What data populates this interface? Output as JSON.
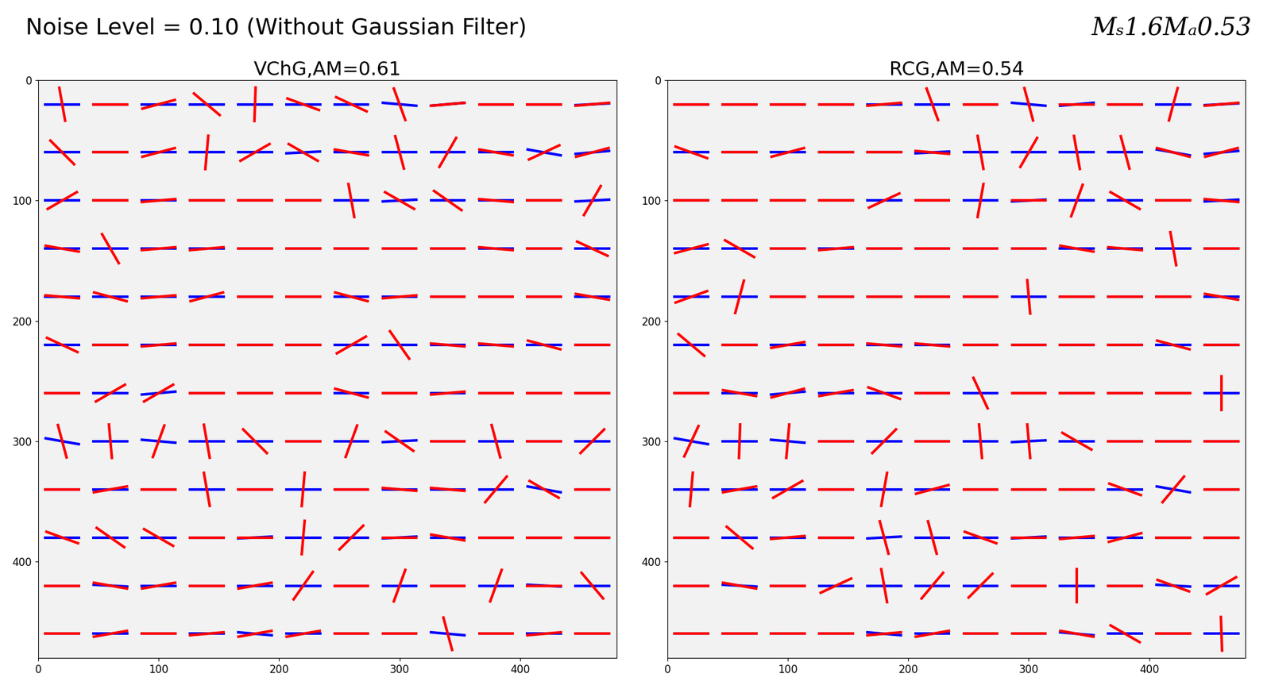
{
  "header": {
    "left": "Noise Level = 0.10 (Without Gaussian Filter)",
    "right": "Mₛ1.6Mₐ0.53"
  },
  "chart_data": [
    {
      "type": "vector",
      "title": "VChG,AM=0.61",
      "x": [
        20,
        60,
        100,
        140,
        180,
        220,
        260,
        300,
        340,
        380,
        420,
        460
      ],
      "y": [
        20,
        60,
        100,
        140,
        180,
        220,
        260,
        300,
        340,
        380,
        420,
        460
      ],
      "xlim": [
        0,
        480
      ],
      "ylim": [
        480,
        0
      ],
      "xticks": [
        0,
        100,
        200,
        300,
        400
      ],
      "yticks": [
        0,
        100,
        200,
        300,
        400
      ],
      "series": [
        {
          "color": "#0000ff",
          "angles": [
            [
              0,
              0,
              0,
              0,
              0,
              0,
              0,
              -5,
              5,
              0,
              0,
              3
            ],
            [
              0,
              0,
              0,
              0,
              0,
              3,
              0,
              0,
              0,
              0,
              -10,
              5
            ],
            [
              0,
              0,
              0,
              0,
              0,
              0,
              0,
              3,
              0,
              0,
              0,
              3
            ],
            [
              0,
              0,
              0,
              0,
              0,
              0,
              0,
              0,
              0,
              0,
              0,
              0
            ],
            [
              0,
              0,
              0,
              0,
              0,
              0,
              0,
              0,
              0,
              0,
              0,
              0
            ],
            [
              0,
              0,
              0,
              0,
              0,
              0,
              0,
              0,
              0,
              0,
              0,
              0
            ],
            [
              0,
              0,
              5,
              0,
              0,
              0,
              0,
              0,
              0,
              0,
              0,
              0
            ],
            [
              -10,
              0,
              -5,
              0,
              0,
              0,
              0,
              3,
              0,
              0,
              0,
              0
            ],
            [
              0,
              0,
              0,
              0,
              0,
              0,
              0,
              0,
              0,
              0,
              -10,
              0
            ],
            [
              0,
              0,
              0,
              0,
              3,
              0,
              0,
              3,
              0,
              0,
              0,
              0
            ],
            [
              0,
              -3,
              0,
              0,
              0,
              0,
              0,
              0,
              0,
              0,
              -3,
              0
            ],
            [
              0,
              0,
              0,
              0,
              -5,
              0,
              0,
              0,
              -5,
              0,
              0,
              0
            ]
          ]
        },
        {
          "color": "#ff0000",
          "angles": [
            [
              -80,
              0,
              15,
              -40,
              88,
              -20,
              -25,
              -70,
              5,
              0,
              0,
              5
            ],
            [
              -45,
              0,
              15,
              85,
              30,
              -30,
              -10,
              -75,
              60,
              -10,
              25,
              15
            ],
            [
              30,
              0,
              5,
              0,
              0,
              0,
              -80,
              -30,
              -35,
              -5,
              0,
              60
            ],
            [
              -10,
              -60,
              5,
              5,
              0,
              0,
              0,
              0,
              0,
              -5,
              0,
              -25
            ],
            [
              -5,
              -15,
              5,
              15,
              0,
              0,
              -15,
              5,
              0,
              0,
              0,
              -10
            ],
            [
              -25,
              0,
              5,
              0,
              0,
              0,
              30,
              -55,
              -5,
              -5,
              -15,
              0
            ],
            [
              0,
              30,
              30,
              0,
              0,
              0,
              -15,
              0,
              5,
              0,
              0,
              0
            ],
            [
              -75,
              -85,
              70,
              -80,
              -45,
              0,
              70,
              -35,
              0,
              -75,
              0,
              45
            ],
            [
              0,
              10,
              0,
              -80,
              0,
              85,
              0,
              -5,
              -5,
              50,
              -30,
              0
            ],
            [
              -20,
              -35,
              -30,
              0,
              0,
              85,
              45,
              0,
              -10,
              0,
              0,
              0
            ],
            [
              0,
              -10,
              10,
              0,
              10,
              55,
              0,
              70,
              0,
              70,
              0,
              -50
            ],
            [
              0,
              10,
              0,
              5,
              10,
              10,
              0,
              0,
              -75,
              0,
              5,
              0
            ]
          ]
        }
      ]
    },
    {
      "type": "vector",
      "title": "RCG,AM=0.54",
      "x": [
        20,
        60,
        100,
        140,
        180,
        220,
        260,
        300,
        340,
        380,
        420,
        460
      ],
      "y": [
        20,
        60,
        100,
        140,
        180,
        220,
        260,
        300,
        340,
        380,
        420,
        460
      ],
      "xlim": [
        0,
        480
      ],
      "ylim": [
        480,
        0
      ],
      "xticks": [
        0,
        100,
        200,
        300,
        400
      ],
      "yticks": [
        0,
        100,
        200,
        300,
        400
      ],
      "series": [
        {
          "color": "#0000ff",
          "angles": [
            [
              0,
              0,
              0,
              0,
              0,
              0,
              0,
              -5,
              5,
              0,
              0,
              3
            ],
            [
              0,
              0,
              0,
              0,
              0,
              3,
              0,
              0,
              0,
              0,
              -10,
              5
            ],
            [
              0,
              0,
              0,
              0,
              0,
              0,
              0,
              3,
              0,
              0,
              0,
              3
            ],
            [
              0,
              0,
              0,
              0,
              0,
              0,
              0,
              0,
              0,
              0,
              0,
              0
            ],
            [
              0,
              0,
              0,
              0,
              0,
              0,
              0,
              0,
              0,
              0,
              0,
              0
            ],
            [
              0,
              0,
              0,
              0,
              0,
              0,
              0,
              0,
              0,
              0,
              0,
              0
            ],
            [
              0,
              0,
              5,
              0,
              0,
              0,
              0,
              0,
              0,
              0,
              0,
              0
            ],
            [
              -10,
              0,
              -5,
              0,
              0,
              0,
              0,
              3,
              0,
              0,
              0,
              0
            ],
            [
              0,
              0,
              0,
              0,
              0,
              0,
              0,
              0,
              0,
              0,
              -10,
              0
            ],
            [
              0,
              0,
              0,
              0,
              3,
              0,
              0,
              3,
              0,
              0,
              0,
              0
            ],
            [
              0,
              -3,
              0,
              0,
              0,
              0,
              0,
              0,
              0,
              0,
              -3,
              0
            ],
            [
              0,
              0,
              0,
              0,
              -5,
              0,
              0,
              0,
              -5,
              0,
              0,
              0
            ]
          ]
        },
        {
          "color": "#ff0000",
          "angles": [
            [
              0,
              0,
              0,
              0,
              5,
              -70,
              0,
              -75,
              0,
              0,
              75,
              5
            ],
            [
              -20,
              0,
              15,
              0,
              0,
              -5,
              -80,
              60,
              -80,
              -75,
              -15,
              15
            ],
            [
              0,
              0,
              0,
              0,
              25,
              0,
              80,
              0,
              70,
              -30,
              0,
              -5
            ],
            [
              15,
              -30,
              0,
              5,
              0,
              0,
              0,
              0,
              -10,
              -5,
              -80,
              0
            ],
            [
              20,
              75,
              0,
              0,
              0,
              0,
              0,
              -85,
              0,
              0,
              0,
              -10
            ],
            [
              -40,
              0,
              10,
              0,
              -5,
              -5,
              0,
              0,
              0,
              0,
              -15,
              0
            ],
            [
              0,
              -10,
              15,
              10,
              -20,
              0,
              -65,
              0,
              0,
              0,
              0,
              -90
            ],
            [
              65,
              88,
              85,
              0,
              45,
              0,
              -85,
              -85,
              -30,
              0,
              0,
              0
            ],
            [
              85,
              10,
              30,
              0,
              80,
              15,
              0,
              0,
              0,
              -20,
              50,
              0
            ],
            [
              0,
              -40,
              5,
              0,
              -75,
              -75,
              -20,
              0,
              5,
              15,
              0,
              0
            ],
            [
              0,
              -10,
              0,
              25,
              -80,
              50,
              45,
              0,
              -90,
              0,
              -20,
              30
            ],
            [
              0,
              0,
              0,
              0,
              5,
              10,
              0,
              0,
              -10,
              -30,
              0,
              -88
            ]
          ]
        }
      ]
    }
  ]
}
